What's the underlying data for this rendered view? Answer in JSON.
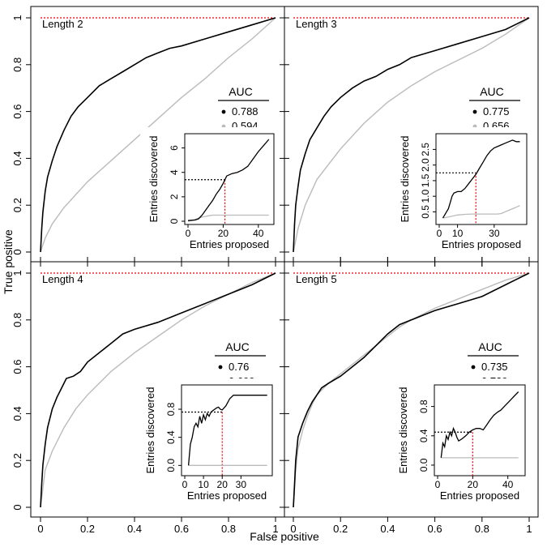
{
  "xlabel": "False positive",
  "ylabel": "True positive",
  "colors": {
    "series1": "#000000",
    "series2": "#bbbbbb",
    "reference": "#e8000b"
  },
  "chart_data": [
    {
      "type": "line",
      "panel_label": "Length 2",
      "xlim": [
        0,
        1
      ],
      "ylim": [
        0,
        1
      ],
      "ticks": [
        0,
        0.2,
        0.4,
        0.6,
        0.8,
        1
      ],
      "reference_line_y": 1,
      "legend": {
        "title": "AUC",
        "entries": [
          "0.788",
          "0.594"
        ]
      },
      "series": [
        {
          "color": "#000000",
          "x": [
            0,
            0.005,
            0.01,
            0.02,
            0.03,
            0.05,
            0.07,
            0.1,
            0.13,
            0.16,
            0.2,
            0.25,
            0.3,
            0.35,
            0.4,
            0.45,
            0.5,
            0.55,
            0.6,
            0.7,
            0.8,
            0.9,
            1
          ],
          "y": [
            0,
            0.1,
            0.17,
            0.26,
            0.32,
            0.39,
            0.45,
            0.52,
            0.58,
            0.62,
            0.66,
            0.71,
            0.74,
            0.77,
            0.8,
            0.83,
            0.85,
            0.87,
            0.88,
            0.91,
            0.94,
            0.97,
            1
          ]
        },
        {
          "color": "#bbbbbb",
          "x": [
            0,
            0.02,
            0.05,
            0.1,
            0.2,
            0.3,
            0.4,
            0.5,
            0.6,
            0.7,
            0.8,
            0.9,
            1
          ],
          "y": [
            0,
            0.06,
            0.12,
            0.19,
            0.3,
            0.39,
            0.48,
            0.57,
            0.66,
            0.74,
            0.83,
            0.91,
            1
          ]
        }
      ],
      "inset": {
        "xlabel": "Entries proposed",
        "ylabel": "Entries discovered",
        "xlim": [
          0,
          47
        ],
        "ylim": [
          0,
          6.9
        ],
        "xticks": [
          0,
          20,
          40
        ],
        "yticks": [
          0,
          2,
          4,
          6
        ],
        "threshold_x": 21,
        "threshold_y": 3.4,
        "series": [
          {
            "color": "#000000",
            "x": [
              0,
              2,
              4,
              6,
              8,
              10,
              12,
              14,
              16,
              18,
              20,
              22,
              25,
              28,
              31,
              34,
              37,
              40,
              43,
              46
            ],
            "y": [
              0.05,
              0.08,
              0.1,
              0.2,
              0.5,
              0.9,
              1.3,
              1.7,
              2.2,
              2.6,
              3.1,
              3.7,
              3.9,
              4.0,
              4.2,
              4.5,
              5.1,
              5.7,
              6.2,
              6.7
            ]
          },
          {
            "color": "#bbbbbb",
            "x": [
              0,
              2,
              4,
              6,
              8,
              10,
              12,
              14,
              16,
              20,
              25,
              30,
              35,
              40,
              46
            ],
            "y": [
              0,
              0.05,
              0.15,
              0.25,
              0.35,
              0.4,
              0.45,
              0.5,
              0.5,
              0.5,
              0.5,
              0.5,
              0.5,
              0.5,
              0.5
            ]
          }
        ]
      }
    },
    {
      "type": "line",
      "panel_label": "Length 3",
      "xlim": [
        0,
        1
      ],
      "ylim": [
        0,
        1
      ],
      "ticks": [
        0,
        0.2,
        0.4,
        0.6,
        0.8,
        1
      ],
      "reference_line_y": 1,
      "legend": {
        "title": "AUC",
        "entries": [
          "0.775",
          "0.656"
        ]
      },
      "series": [
        {
          "color": "#000000",
          "x": [
            0,
            0.005,
            0.01,
            0.02,
            0.03,
            0.05,
            0.07,
            0.1,
            0.13,
            0.16,
            0.2,
            0.25,
            0.3,
            0.35,
            0.4,
            0.45,
            0.5,
            0.6,
            0.7,
            0.8,
            0.9,
            1
          ],
          "y": [
            0,
            0.12,
            0.2,
            0.28,
            0.35,
            0.42,
            0.48,
            0.53,
            0.58,
            0.62,
            0.66,
            0.7,
            0.73,
            0.75,
            0.78,
            0.8,
            0.83,
            0.86,
            0.89,
            0.92,
            0.95,
            1
          ]
        },
        {
          "color": "#bbbbbb",
          "x": [
            0,
            0.02,
            0.05,
            0.1,
            0.2,
            0.3,
            0.4,
            0.5,
            0.6,
            0.7,
            0.8,
            0.9,
            1
          ],
          "y": [
            0,
            0.1,
            0.2,
            0.31,
            0.44,
            0.55,
            0.64,
            0.71,
            0.77,
            0.82,
            0.87,
            0.93,
            1
          ]
        }
      ],
      "inset": {
        "xlabel": "Entries proposed",
        "ylabel": "Entries discovered",
        "xlim": [
          0,
          46
        ],
        "ylim": [
          0.2,
          2.9
        ],
        "xticks": [
          0,
          10,
          30
        ],
        "yticks": [
          0.5,
          1.0,
          1.5,
          2.0,
          2.5
        ],
        "threshold_x": 20,
        "threshold_y": 1.75,
        "series": [
          {
            "color": "#000000",
            "x": [
              2,
              4,
              5,
              6,
              7,
              8,
              10,
              12,
              14,
              16,
              18,
              20,
              22,
              24,
              26,
              28,
              30,
              32,
              34,
              36,
              38,
              40,
              42,
              44
            ],
            "y": [
              0.3,
              0.5,
              0.6,
              0.8,
              1.0,
              1.1,
              1.15,
              1.15,
              1.25,
              1.4,
              1.55,
              1.7,
              1.9,
              2.1,
              2.3,
              2.45,
              2.55,
              2.6,
              2.65,
              2.7,
              2.75,
              2.8,
              2.75,
              2.75
            ]
          },
          {
            "color": "#bbbbbb",
            "x": [
              2,
              6,
              10,
              14,
              18,
              20,
              25,
              30,
              32,
              34,
              36,
              38,
              40,
              42,
              44
            ],
            "y": [
              0.3,
              0.35,
              0.4,
              0.42,
              0.43,
              0.43,
              0.43,
              0.43,
              0.43,
              0.45,
              0.5,
              0.55,
              0.6,
              0.65,
              0.7
            ]
          }
        ]
      }
    },
    {
      "type": "line",
      "panel_label": "Length 4",
      "xlim": [
        0,
        1
      ],
      "ylim": [
        0,
        1
      ],
      "ticks": [
        0,
        0.2,
        0.4,
        0.6,
        0.8,
        1
      ],
      "reference_line_y": 1,
      "legend": {
        "title": "AUC",
        "entries": [
          "0.76",
          "0.699"
        ]
      },
      "series": [
        {
          "color": "#000000",
          "x": [
            0,
            0.005,
            0.01,
            0.02,
            0.03,
            0.05,
            0.07,
            0.09,
            0.11,
            0.14,
            0.17,
            0.2,
            0.25,
            0.3,
            0.35,
            0.4,
            0.5,
            0.6,
            0.7,
            0.8,
            0.9,
            1
          ],
          "y": [
            0,
            0.1,
            0.18,
            0.27,
            0.34,
            0.42,
            0.47,
            0.51,
            0.55,
            0.56,
            0.58,
            0.62,
            0.66,
            0.7,
            0.74,
            0.76,
            0.79,
            0.83,
            0.87,
            0.91,
            0.95,
            1
          ]
        },
        {
          "color": "#bbbbbb",
          "x": [
            0,
            0.02,
            0.05,
            0.1,
            0.15,
            0.2,
            0.3,
            0.4,
            0.5,
            0.6,
            0.7,
            0.8,
            0.9,
            1
          ],
          "y": [
            0,
            0.16,
            0.24,
            0.34,
            0.42,
            0.48,
            0.58,
            0.66,
            0.73,
            0.8,
            0.86,
            0.91,
            0.96,
            1
          ]
        }
      ],
      "inset": {
        "xlabel": "Entries proposed",
        "ylabel": "Entries discovered",
        "xlim": [
          0,
          45
        ],
        "ylim": [
          -0.1,
          1.1
        ],
        "xticks": [
          0,
          10,
          20,
          30
        ],
        "yticks": [
          0.0,
          0.4,
          0.8
        ],
        "threshold_x": 20,
        "threshold_y": 0.76,
        "series": [
          {
            "color": "#000000",
            "x": [
              2,
              3,
              4,
              5,
              6,
              7,
              8,
              9,
              10,
              11,
              12,
              13,
              14,
              15,
              16,
              17,
              18,
              19,
              20,
              22,
              24,
              26,
              28,
              30,
              34,
              38,
              42,
              44
            ],
            "y": [
              0,
              0.3,
              0.4,
              0.55,
              0.6,
              0.55,
              0.7,
              0.6,
              0.72,
              0.65,
              0.74,
              0.7,
              0.76,
              0.78,
              0.8,
              0.82,
              0.83,
              0.8,
              0.79,
              0.85,
              0.95,
              1.0,
              1.0,
              1.0,
              1.0,
              1.0,
              1.0,
              1.0
            ]
          },
          {
            "color": "#bbbbbb",
            "x": [
              2,
              10,
              20,
              30,
              44
            ],
            "y": [
              0,
              0,
              0,
              0,
              0
            ]
          }
        ]
      }
    },
    {
      "type": "line",
      "panel_label": "Length 5",
      "xlim": [
        0,
        1
      ],
      "ylim": [
        0,
        1
      ],
      "ticks": [
        0,
        0.2,
        0.4,
        0.6,
        0.8,
        1
      ],
      "reference_line_y": 1,
      "legend": {
        "title": "AUC",
        "entries": [
          "0.735",
          "0.739"
        ]
      },
      "series": [
        {
          "color": "#000000",
          "x": [
            0,
            0.005,
            0.01,
            0.02,
            0.04,
            0.06,
            0.08,
            0.1,
            0.12,
            0.15,
            0.2,
            0.25,
            0.3,
            0.35,
            0.4,
            0.45,
            0.5,
            0.55,
            0.6,
            0.7,
            0.8,
            0.9,
            1
          ],
          "y": [
            0,
            0.1,
            0.2,
            0.3,
            0.36,
            0.41,
            0.45,
            0.48,
            0.51,
            0.53,
            0.56,
            0.6,
            0.64,
            0.69,
            0.74,
            0.78,
            0.8,
            0.82,
            0.84,
            0.87,
            0.9,
            0.95,
            1
          ]
        },
        {
          "color": "#bbbbbb",
          "x": [
            0,
            0.005,
            0.01,
            0.02,
            0.04,
            0.06,
            0.08,
            0.1,
            0.15,
            0.2,
            0.25,
            0.3,
            0.35,
            0.4,
            0.45,
            0.5,
            0.6,
            0.7,
            0.8,
            0.9,
            1
          ],
          "y": [
            0,
            0.08,
            0.16,
            0.25,
            0.33,
            0.39,
            0.44,
            0.48,
            0.53,
            0.57,
            0.61,
            0.65,
            0.69,
            0.73,
            0.77,
            0.8,
            0.85,
            0.89,
            0.93,
            0.97,
            1
          ]
        }
      ],
      "inset": {
        "xlabel": "Entries proposed",
        "ylabel": "Entries discovered",
        "xlim": [
          0,
          48
        ],
        "ylim": [
          -0.1,
          1.05
        ],
        "xticks": [
          0,
          20,
          40
        ],
        "yticks": [
          0.0,
          0.4,
          0.8
        ],
        "threshold_x": 20,
        "threshold_y": 0.45,
        "series": [
          {
            "color": "#000000",
            "x": [
              2,
              3,
              4,
              5,
              6,
              7,
              8,
              9,
              10,
              11,
              12,
              14,
              16,
              18,
              20,
              22,
              24,
              26,
              28,
              30,
              32,
              34,
              36,
              38,
              40,
              42,
              44,
              46
            ],
            "y": [
              0.1,
              0.3,
              0.25,
              0.4,
              0.35,
              0.45,
              0.4,
              0.5,
              0.45,
              0.38,
              0.33,
              0.36,
              0.4,
              0.45,
              0.48,
              0.5,
              0.5,
              0.48,
              0.55,
              0.62,
              0.68,
              0.72,
              0.75,
              0.8,
              0.85,
              0.9,
              0.95,
              1.0
            ]
          },
          {
            "color": "#bbbbbb",
            "x": [
              2,
              5,
              10,
              20,
              30,
              40,
              46
            ],
            "y": [
              0.1,
              0.1,
              0.1,
              0.1,
              0.1,
              0.1,
              0.1
            ]
          }
        ]
      }
    }
  ]
}
